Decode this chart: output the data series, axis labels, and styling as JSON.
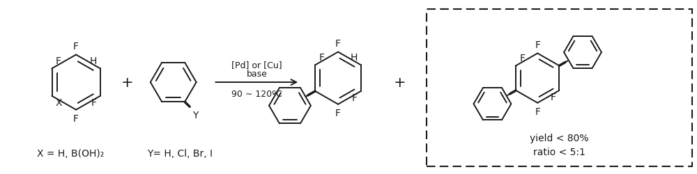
{
  "bg_color": "#ffffff",
  "bond_color": "#1a1a1a",
  "figsize": [
    10.0,
    2.51
  ],
  "dpi": 100,
  "conditions_line1": "[Pd] or [Cu]",
  "conditions_line2": "base",
  "conditions_line3": "90 ~ 120ºC",
  "label_x": "X = H, B(OH)₂",
  "label_y": "Y= H, Cl, Br, I",
  "yield_text": "yield < 80%\nratio < 5:1",
  "font_size_atom": 10,
  "font_size_label": 10,
  "font_size_conditions": 9
}
